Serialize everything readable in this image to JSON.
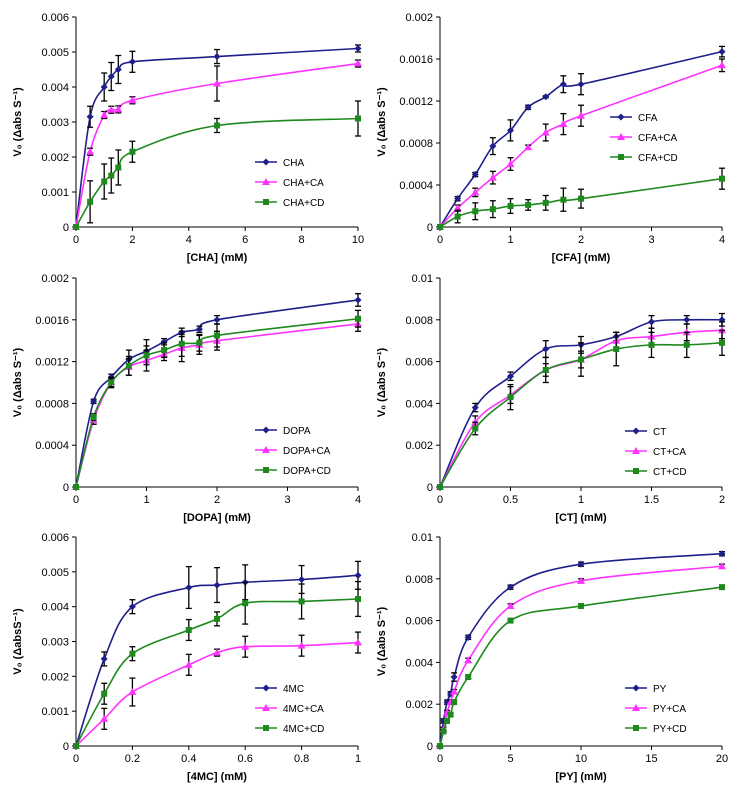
{
  "colors": {
    "blue": "#1f1f8c",
    "magenta": "#ff33ff",
    "green": "#1e8a1e",
    "axis": "#000000",
    "err": "#000000"
  },
  "chart_data": [
    {
      "type": "line",
      "xlabel": "[CHA] (mM)",
      "ylabel": "V₀ (Δabs S⁻¹)",
      "xlim": [
        0,
        10
      ],
      "ylim": [
        0,
        0.006
      ],
      "xticks": [
        "0",
        "2",
        "4",
        "6",
        "8",
        "10"
      ],
      "yticks": [
        "0",
        "0.001",
        "0.002",
        "0.003",
        "0.004",
        "0.005",
        "0.006"
      ],
      "legend_position": "lower-right",
      "series": [
        {
          "name": "CHA",
          "color": "blue",
          "marker": "diamond",
          "x": [
            0,
            0.5,
            1,
            1.25,
            1.5,
            2,
            5,
            10
          ],
          "y": [
            0,
            0.00315,
            0.004,
            0.0043,
            0.0045,
            0.00472,
            0.00487,
            0.0051
          ],
          "err": [
            0,
            0.0003,
            0.0004,
            0.0004,
            0.0004,
            0.0003,
            0.0002,
            0.0001
          ]
        },
        {
          "name": "CHA+CA",
          "color": "magenta",
          "marker": "triangle",
          "x": [
            0,
            0.5,
            1,
            1.25,
            1.5,
            2,
            5,
            10
          ],
          "y": [
            0,
            0.00215,
            0.0032,
            0.00335,
            0.00336,
            0.00362,
            0.0041,
            0.00467
          ],
          "err": [
            0,
            0.0001,
            0.0001,
            0.0001,
            0.0001,
            0.0001,
            0.0005,
            0.0001
          ]
        },
        {
          "name": "CHA+CD",
          "color": "green",
          "marker": "square",
          "x": [
            0,
            0.5,
            1,
            1.25,
            1.5,
            2,
            5,
            10
          ],
          "y": [
            0,
            0.00072,
            0.0013,
            0.00147,
            0.0017,
            0.00215,
            0.0029,
            0.0031
          ],
          "err": [
            0,
            0.0006,
            0.0005,
            0.0005,
            0.0005,
            0.0003,
            0.0002,
            0.0005
          ]
        }
      ]
    },
    {
      "type": "line",
      "xlabel": "[CFA] (mM)",
      "ylabel": "V₀ (Δabs S⁻¹)",
      "xlim": [
        0,
        4
      ],
      "ylim": [
        0,
        0.002
      ],
      "xticks": [
        "0",
        "1",
        "2",
        "3",
        "4"
      ],
      "yticks": [
        "0",
        "0.0004",
        "0.0008",
        "0.0012",
        "0.0016",
        "0.002"
      ],
      "legend_position": "middle-right",
      "series": [
        {
          "name": "CFA",
          "color": "blue",
          "marker": "diamond",
          "x": [
            0,
            0.25,
            0.5,
            0.75,
            1,
            1.25,
            1.5,
            1.75,
            2,
            4
          ],
          "y": [
            0,
            0.00027,
            0.0005,
            0.00077,
            0.00092,
            0.00114,
            0.00124,
            0.00136,
            0.00136,
            0.00167
          ],
          "err": [
            0,
            2e-05,
            2e-05,
            8e-05,
            0.0001,
            2e-05,
            1e-05,
            8e-05,
            0.0001,
            5e-05
          ]
        },
        {
          "name": "CFA+CA",
          "color": "magenta",
          "marker": "triangle",
          "x": [
            0,
            0.25,
            0.5,
            0.75,
            1,
            1.25,
            1.5,
            1.75,
            2,
            4
          ],
          "y": [
            0,
            0.00018,
            0.00033,
            0.00047,
            0.0006,
            0.00076,
            0.0009,
            0.00098,
            0.00106,
            0.00154
          ],
          "err": [
            0,
            3e-05,
            4e-05,
            6e-05,
            6e-05,
            2e-05,
            8e-05,
            0.0001,
            0.0001,
            6e-05
          ]
        },
        {
          "name": "CFA+CD",
          "color": "green",
          "marker": "square",
          "x": [
            0,
            0.25,
            0.5,
            0.75,
            1,
            1.25,
            1.5,
            1.75,
            2,
            4
          ],
          "y": [
            0,
            0.0001,
            0.00015,
            0.00017,
            0.0002,
            0.00021,
            0.00023,
            0.00026,
            0.00027,
            0.00046
          ],
          "err": [
            0,
            6e-05,
            8e-05,
            8e-05,
            7e-05,
            5e-05,
            7e-05,
            0.00011,
            9e-05,
            0.0001
          ]
        }
      ]
    },
    {
      "type": "line",
      "xlabel": "[DOPA] (mM)",
      "ylabel": "V₀ (Δabs S⁻¹)",
      "xlim": [
        0,
        4
      ],
      "ylim": [
        0,
        0.002
      ],
      "xticks": [
        "0",
        "1",
        "2",
        "3",
        "4"
      ],
      "yticks": [
        "0",
        "0.0004",
        "0.0008",
        "0.0012",
        "0.0016",
        "0.002"
      ],
      "legend_position": "lower-right",
      "series": [
        {
          "name": "DOPA",
          "color": "blue",
          "marker": "diamond",
          "x": [
            0,
            0.25,
            0.5,
            0.75,
            1,
            1.25,
            1.5,
            1.75,
            2,
            4
          ],
          "y": [
            0,
            0.00082,
            0.00105,
            0.00122,
            0.0013,
            0.00139,
            0.00148,
            0.00151,
            0.0016,
            0.00179
          ],
          "err": [
            0,
            2e-05,
            3e-05,
            9e-05,
            0.00011,
            3e-05,
            4e-05,
            3e-05,
            4e-05,
            6e-05
          ]
        },
        {
          "name": "DOPA+CA",
          "color": "magenta",
          "marker": "triangle",
          "x": [
            0,
            0.25,
            0.5,
            0.75,
            1,
            1.25,
            1.5,
            1.75,
            2,
            4
          ],
          "y": [
            0,
            0.00064,
            0.001,
            0.00115,
            0.00121,
            0.00127,
            0.00133,
            0.00136,
            0.0014,
            0.00156
          ],
          "err": [
            0,
            4e-05,
            4e-05,
            8e-05,
            0.0001,
            6e-05,
            0.00013,
            9e-05,
            9e-05,
            7e-05
          ]
        },
        {
          "name": "DOPA+CD",
          "color": "green",
          "marker": "square",
          "x": [
            0,
            0.25,
            0.5,
            0.75,
            1,
            1.25,
            1.5,
            1.75,
            2,
            4
          ],
          "y": [
            0,
            0.00067,
            0.001,
            0.00116,
            0.00126,
            0.00131,
            0.00137,
            0.00138,
            0.00145,
            0.00161
          ],
          "err": [
            0,
            3e-05,
            5e-05,
            9e-05,
            9e-05,
            7e-05,
            0.00012,
            8e-05,
            0.00011,
            8e-05
          ]
        }
      ]
    },
    {
      "type": "line",
      "xlabel": "[CT] (mM)",
      "ylabel": "V₀ (Δabs S⁻¹)",
      "xlim": [
        0,
        2
      ],
      "ylim": [
        0,
        0.01
      ],
      "xticks": [
        "0",
        "0.5",
        "1",
        "1.5",
        "2"
      ],
      "yticks": [
        "0",
        "0.002",
        "0.004",
        "0.006",
        "0.008",
        "0.01"
      ],
      "legend_position": "lower-right",
      "series": [
        {
          "name": "CT",
          "color": "blue",
          "marker": "diamond",
          "x": [
            0,
            0.25,
            0.5,
            0.75,
            1,
            1.25,
            1.5,
            1.75,
            2
          ],
          "y": [
            0,
            0.0038,
            0.0053,
            0.0066,
            0.0068,
            0.0072,
            0.0079,
            0.008,
            0.008
          ],
          "err": [
            0,
            0.0002,
            0.0002,
            0.0004,
            0.0004,
            0.0002,
            0.0003,
            0.0002,
            0.0003
          ]
        },
        {
          "name": "CT+CA",
          "color": "magenta",
          "marker": "triangle",
          "x": [
            0,
            0.25,
            0.5,
            0.75,
            1,
            1.25,
            1.5,
            1.75,
            2
          ],
          "y": [
            0,
            0.0031,
            0.0044,
            0.0056,
            0.0061,
            0.007,
            0.0072,
            0.0074,
            0.0075
          ],
          "err": [
            0,
            0.0003,
            0.0004,
            0.0003,
            0.0004,
            0.0004,
            0.0004,
            0.0004,
            0.0004
          ]
        },
        {
          "name": "CT+CD",
          "color": "green",
          "marker": "square",
          "x": [
            0,
            0.25,
            0.5,
            0.75,
            1,
            1.25,
            1.5,
            1.75,
            2
          ],
          "y": [
            0,
            0.0028,
            0.0043,
            0.0056,
            0.0061,
            0.0066,
            0.0068,
            0.0068,
            0.0069
          ],
          "err": [
            0,
            0.0003,
            0.0006,
            0.0006,
            0.0008,
            0.0008,
            0.0006,
            0.0006,
            0.0006
          ]
        }
      ]
    },
    {
      "type": "line",
      "xlabel": "[4MC] (mM)",
      "ylabel": "V₀ (ΔabsS⁻¹)",
      "xlim": [
        0,
        1
      ],
      "ylim": [
        0,
        0.006
      ],
      "xticks": [
        "0",
        "0.2",
        "0.4",
        "0.6",
        "0.8",
        "1"
      ],
      "yticks": [
        "0",
        "0.001",
        "0.002",
        "0.003",
        "0.004",
        "0.005",
        "0.006"
      ],
      "legend_position": "lower-right",
      "series": [
        {
          "name": "4MC",
          "color": "blue",
          "marker": "diamond",
          "x": [
            0,
            0.1,
            0.2,
            0.4,
            0.5,
            0.6,
            0.8,
            1
          ],
          "y": [
            0,
            0.0025,
            0.004,
            0.00455,
            0.00462,
            0.0047,
            0.00478,
            0.0049
          ],
          "err": [
            0,
            0.0002,
            0.0002,
            0.0006,
            0.0005,
            0.0005,
            0.0004,
            0.0004
          ]
        },
        {
          "name": "4MC+CA",
          "color": "magenta",
          "marker": "triangle",
          "x": [
            0,
            0.1,
            0.2,
            0.4,
            0.5,
            0.6,
            0.8,
            1
          ],
          "y": [
            0,
            0.00078,
            0.00155,
            0.00233,
            0.00268,
            0.00285,
            0.00288,
            0.00297
          ],
          "err": [
            0,
            0.0003,
            0.0004,
            0.0003,
            0.0001,
            0.0003,
            0.0003,
            0.0003
          ]
        },
        {
          "name": "4MC+CD",
          "color": "green",
          "marker": "square",
          "x": [
            0,
            0.1,
            0.2,
            0.4,
            0.5,
            0.6,
            0.8,
            1
          ],
          "y": [
            0,
            0.0015,
            0.00265,
            0.00333,
            0.00365,
            0.0041,
            0.00415,
            0.00422
          ],
          "err": [
            0,
            0.0003,
            0.0002,
            0.0003,
            0.0002,
            0.0006,
            0.0005,
            0.0005
          ]
        }
      ]
    },
    {
      "type": "line",
      "xlabel": "[PY] (mM)",
      "ylabel": "V₀ (Δabs S⁻¹)",
      "xlim": [
        0,
        20
      ],
      "ylim": [
        0,
        0.01
      ],
      "xticks": [
        "0",
        "5",
        "10",
        "15",
        "20"
      ],
      "yticks": [
        "0",
        "0.002",
        "0.004",
        "0.006",
        "0.008",
        "0.01"
      ],
      "legend_position": "lower-right",
      "series": [
        {
          "name": "PY",
          "color": "blue",
          "marker": "diamond",
          "x": [
            0,
            0.25,
            0.5,
            0.75,
            1,
            2,
            5,
            10,
            20
          ],
          "y": [
            0,
            0.0012,
            0.0021,
            0.0025,
            0.0033,
            0.0052,
            0.0076,
            0.0087,
            0.0092
          ],
          "err": [
            0,
            0.0001,
            0.0001,
            0.0001,
            0.0002,
            0.0001,
            0.0001,
            0.0001,
            0.0001
          ]
        },
        {
          "name": "PY+CA",
          "color": "magenta",
          "marker": "triangle",
          "x": [
            0,
            0.25,
            0.5,
            0.75,
            1,
            2,
            5,
            10,
            20
          ],
          "y": [
            0,
            0.0008,
            0.0016,
            0.0021,
            0.0026,
            0.0041,
            0.0067,
            0.0079,
            0.0086
          ],
          "err": [
            0,
            0.0001,
            0.0001,
            0.0001,
            0.0001,
            0.0001,
            0.0001,
            0.0001,
            0.0001
          ]
        },
        {
          "name": "PY+CD",
          "color": "green",
          "marker": "square",
          "x": [
            0,
            0.25,
            0.5,
            0.75,
            1,
            2,
            5,
            10,
            20
          ],
          "y": [
            0,
            0.0007,
            0.0012,
            0.0015,
            0.0021,
            0.0033,
            0.006,
            0.0067,
            0.0076
          ],
          "err": [
            0,
            0.0001,
            0.0001,
            0.0001,
            0.0001,
            0.0001,
            0.0001,
            0.0001,
            0.0001
          ]
        }
      ]
    }
  ]
}
